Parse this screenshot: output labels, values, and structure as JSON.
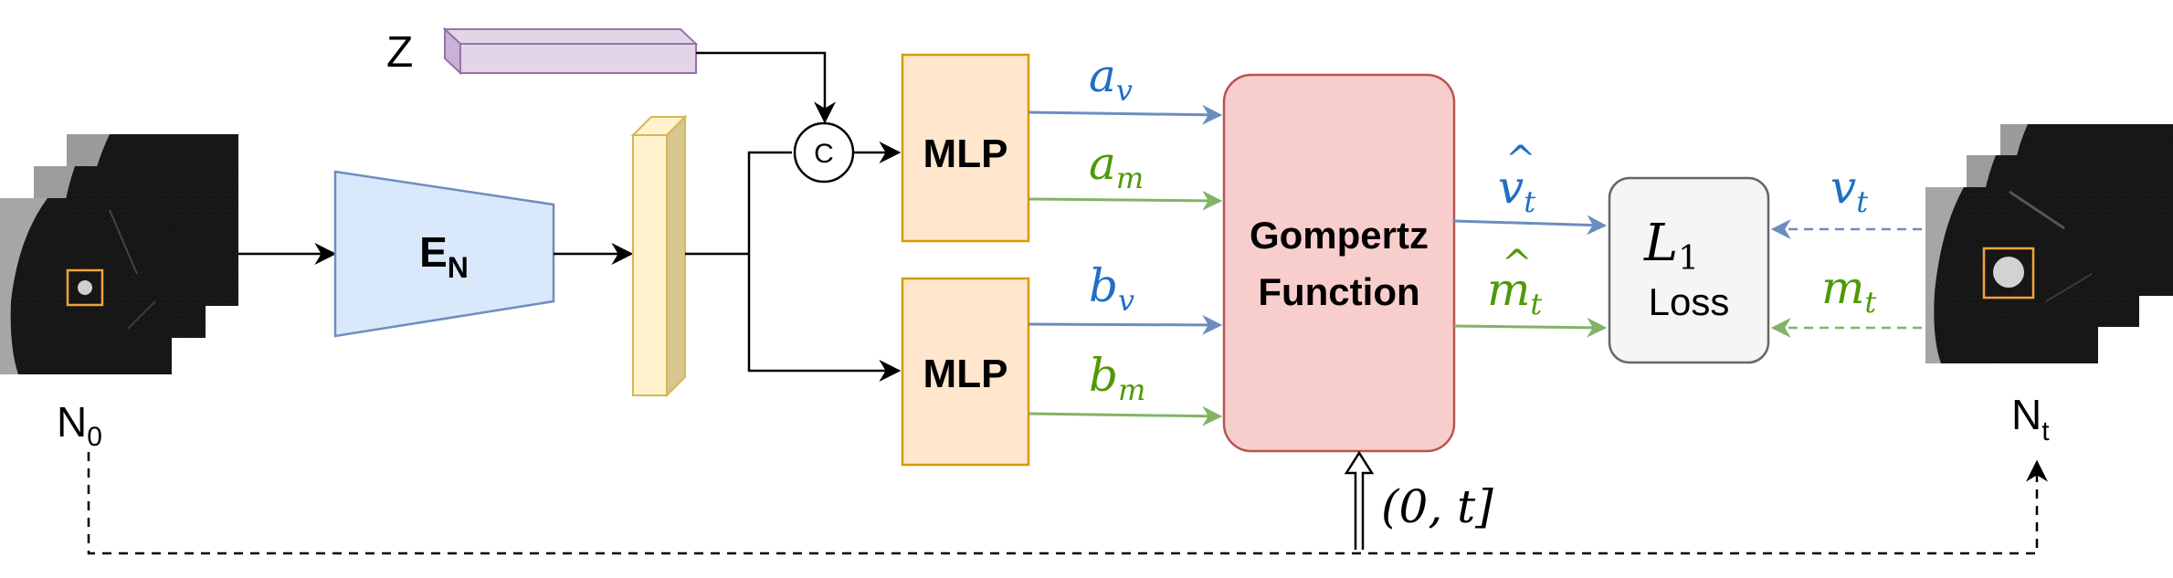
{
  "inputs": {
    "n0_label": "N",
    "n0_sub": "0",
    "nt_label": "N",
    "nt_sub": "t",
    "z_label": "Z"
  },
  "encoder": {
    "label": "E",
    "sub": "N"
  },
  "concat": {
    "label": "C"
  },
  "mlp_top": {
    "label": "MLP"
  },
  "mlp_bottom": {
    "label": "MLP"
  },
  "params": {
    "a_v": {
      "base": "a",
      "sub": "v"
    },
    "a_m": {
      "base": "a",
      "sub": "m"
    },
    "b_v": {
      "base": "b",
      "sub": "v"
    },
    "b_m": {
      "base": "b",
      "sub": "m"
    }
  },
  "gompertz": {
    "line1": "Gompertz",
    "line2": "Function"
  },
  "time_input": {
    "label": "(0, t]"
  },
  "outputs": {
    "v_hat": {
      "base": "v",
      "hat": "^",
      "sub": "t"
    },
    "m_hat": {
      "base": "m",
      "hat": "^",
      "sub": "t"
    }
  },
  "loss": {
    "symbol": "L",
    "sub": "1",
    "label": "Loss"
  },
  "targets": {
    "v_t": {
      "base": "v",
      "sub": "t"
    },
    "m_t": {
      "base": "m",
      "sub": "t"
    }
  },
  "colors": {
    "blue": "#1f6fc5",
    "green": "#4e9a06",
    "blue_arrow": "#6c8ebf",
    "green_arrow": "#82b366",
    "mlp_fill": "#ffe6cc",
    "mlp_stroke": "#d79b00",
    "encoder_fill": "#dae8fc",
    "encoder_stroke": "#6c8ebf",
    "gompertz_fill": "#f8cecc",
    "gompertz_stroke": "#b85450",
    "loss_fill": "#f5f5f5",
    "loss_stroke": "#666666",
    "feature_fill": "#fff2cc",
    "feature_stroke": "#d6b656",
    "z_fill": "#e1d5e7",
    "z_stroke": "#9673a6"
  }
}
